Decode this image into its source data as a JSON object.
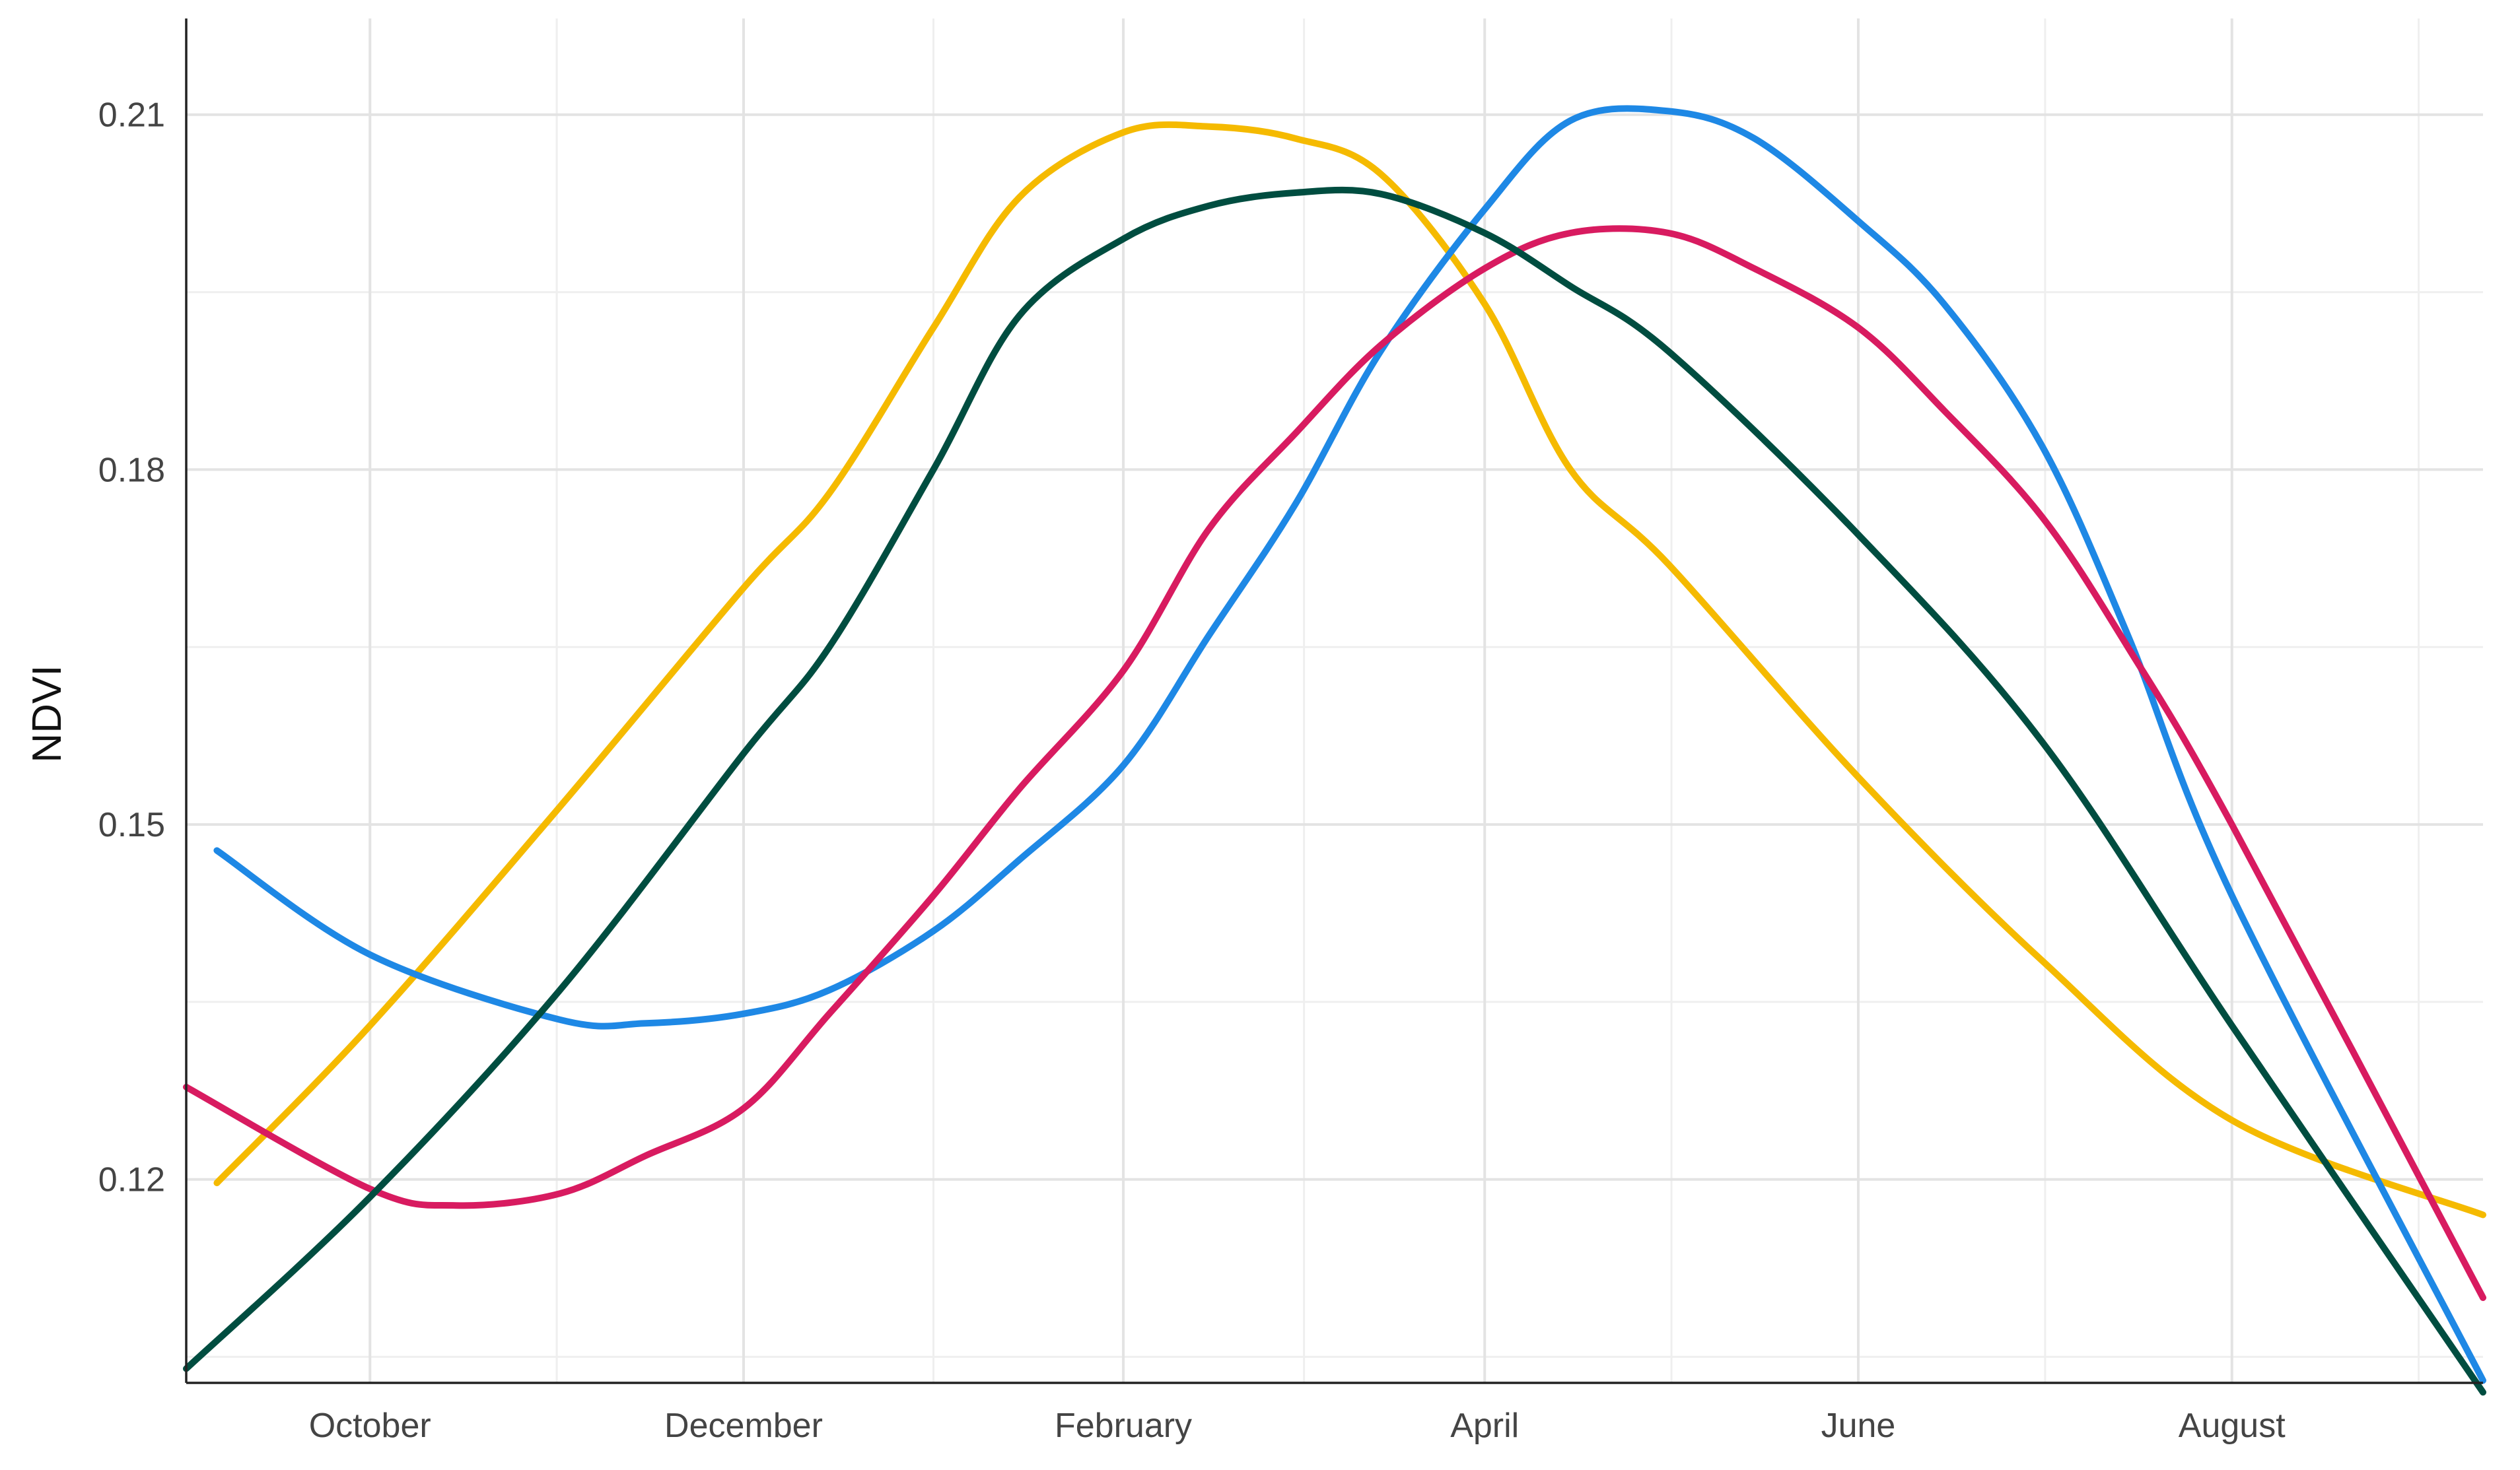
{
  "chart_data": {
    "type": "line",
    "title": "",
    "xlabel": "",
    "ylabel": "NDVI",
    "x_ticks": [
      "October",
      "December",
      "February",
      "April",
      "June",
      "August"
    ],
    "x_tick_dates": [
      "2020-10-01",
      "2020-12-01",
      "2021-02-01",
      "2021-04-01",
      "2021-06-01",
      "2021-08-01"
    ],
    "x_range": [
      "2020-09-01",
      "2021-09-11"
    ],
    "y_ticks": [
      "0.12",
      "0.15",
      "0.18",
      "0.21"
    ],
    "ylim": [
      0.1028,
      0.2159
    ],
    "grid": true,
    "legend": "none",
    "series": [
      {
        "color": "#F5BA00",
        "x": [
          "2020-09-06",
          "2020-10-01",
          "2020-11-01",
          "2020-12-01",
          "2020-12-15",
          "2021-01-01",
          "2021-01-15",
          "2021-02-01",
          "2021-02-15",
          "2021-03-01",
          "2021-03-15",
          "2021-04-01",
          "2021-04-15",
          "2021-05-01",
          "2021-06-01",
          "2021-07-01",
          "2021-08-01",
          "2021-09-11"
        ],
        "y": [
          0.1197,
          0.133,
          0.1515,
          0.17,
          0.178,
          0.192,
          0.203,
          0.2085,
          0.209,
          0.208,
          0.205,
          0.194,
          0.18,
          0.172,
          0.154,
          0.1385,
          0.125,
          0.117
        ]
      },
      {
        "color": "#1E88E5",
        "x": [
          "2020-09-06",
          "2020-10-01",
          "2020-11-01",
          "2020-11-15",
          "2020-12-01",
          "2020-12-15",
          "2021-01-01",
          "2021-01-15",
          "2021-02-01",
          "2021-02-15",
          "2021-03-01",
          "2021-03-15",
          "2021-04-01",
          "2021-04-15",
          "2021-05-01",
          "2021-05-15",
          "2021-06-01",
          "2021-06-15",
          "2021-07-01",
          "2021-07-15",
          "2021-08-01",
          "2021-09-11"
        ],
        "y": [
          0.1478,
          0.139,
          0.1335,
          0.1332,
          0.134,
          0.136,
          0.141,
          0.147,
          0.155,
          0.166,
          0.177,
          0.19,
          0.202,
          0.2095,
          0.2103,
          0.208,
          0.201,
          0.194,
          0.182,
          0.166,
          0.144,
          0.103
        ]
      },
      {
        "color": "#D81B60",
        "x": [
          "2020-09-01",
          "2020-10-01",
          "2020-10-15",
          "2020-11-01",
          "2020-11-15",
          "2020-12-01",
          "2020-12-15",
          "2021-01-01",
          "2021-01-15",
          "2021-02-01",
          "2021-02-15",
          "2021-03-01",
          "2021-03-15",
          "2021-04-01",
          "2021-04-15",
          "2021-05-01",
          "2021-05-15",
          "2021-06-01",
          "2021-06-15",
          "2021-07-01",
          "2021-07-15",
          "2021-08-01",
          "2021-09-11"
        ],
        "y": [
          0.1278,
          0.1192,
          0.1178,
          0.1188,
          0.122,
          0.126,
          0.134,
          0.144,
          0.153,
          0.163,
          0.175,
          0.183,
          0.1905,
          0.197,
          0.2,
          0.2,
          0.197,
          0.192,
          0.185,
          0.176,
          0.165,
          0.15,
          0.11
        ]
      },
      {
        "color": "#004D40",
        "x": [
          "2020-09-01",
          "2020-10-01",
          "2020-11-01",
          "2020-12-01",
          "2020-12-15",
          "2021-01-01",
          "2021-01-15",
          "2021-02-01",
          "2021-02-15",
          "2021-03-01",
          "2021-03-15",
          "2021-04-01",
          "2021-04-15",
          "2021-05-01",
          "2021-06-01",
          "2021-07-01",
          "2021-08-01",
          "2021-09-11"
        ],
        "y": [
          0.104,
          0.1185,
          0.136,
          0.156,
          0.165,
          0.18,
          0.193,
          0.1995,
          0.2023,
          0.2034,
          0.2033,
          0.2,
          0.1955,
          0.19,
          0.1745,
          0.157,
          0.133,
          0.102
        ]
      }
    ]
  }
}
